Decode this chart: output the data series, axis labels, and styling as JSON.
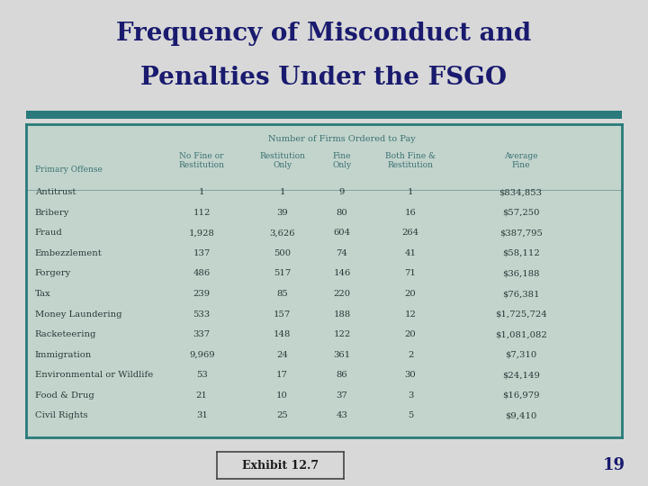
{
  "title_line1": "Frequency of Misconduct and",
  "title_line2": "Penalties Under the FSGO",
  "bg_color": "#d8d8d8",
  "table_bg": "#c2d4cc",
  "table_border_color": "#2a7a7a",
  "title_color": "#1a1a6e",
  "header_group": "Number of Firms Ordered to Pay",
  "col_headers": [
    "Primary Offense",
    "No Fine or\nRestitution",
    "Restitution\nOnly",
    "Fine\nOnly",
    "Both Fine &\nRestitution",
    "Average\nFine"
  ],
  "rows": [
    [
      "Antitrust",
      "1",
      "1",
      "9",
      "1",
      "$834,853"
    ],
    [
      "Bribery",
      "112",
      "39",
      "80",
      "16",
      "$57,250"
    ],
    [
      "Fraud",
      "1,928",
      "3,626",
      "604",
      "264",
      "$387,795"
    ],
    [
      "Embezzlement",
      "137",
      "500",
      "74",
      "41",
      "$58,112"
    ],
    [
      "Forgery",
      "486",
      "517",
      "146",
      "71",
      "$36,188"
    ],
    [
      "Tax",
      "239",
      "85",
      "220",
      "20",
      "$76,381"
    ],
    [
      "Money Laundering",
      "533",
      "157",
      "188",
      "12",
      "$1,725,724"
    ],
    [
      "Racketeering",
      "337",
      "148",
      "122",
      "20",
      "$1,081,082"
    ],
    [
      "Immigration",
      "9,969",
      "24",
      "361",
      "2",
      "$7,310"
    ],
    [
      "Environmental or Wildlife",
      "53",
      "17",
      "86",
      "30",
      "$24,149"
    ],
    [
      "Food & Drug",
      "21",
      "10",
      "37",
      "3",
      "$16,979"
    ],
    [
      "Civil Rights",
      "31",
      "25",
      "43",
      "5",
      "$9,410"
    ]
  ],
  "exhibit_text": "Exhibit 12.7",
  "page_number": "19",
  "header_text_color": "#3a7070",
  "cell_text_color": "#2a3a3a",
  "divider_color": "#2a7a7a",
  "title_fontsize": 20,
  "header_group_fontsize": 7,
  "col_header_fontsize": 6.5,
  "cell_fontsize": 7.2,
  "exhibit_fontsize": 9,
  "page_fontsize": 13
}
